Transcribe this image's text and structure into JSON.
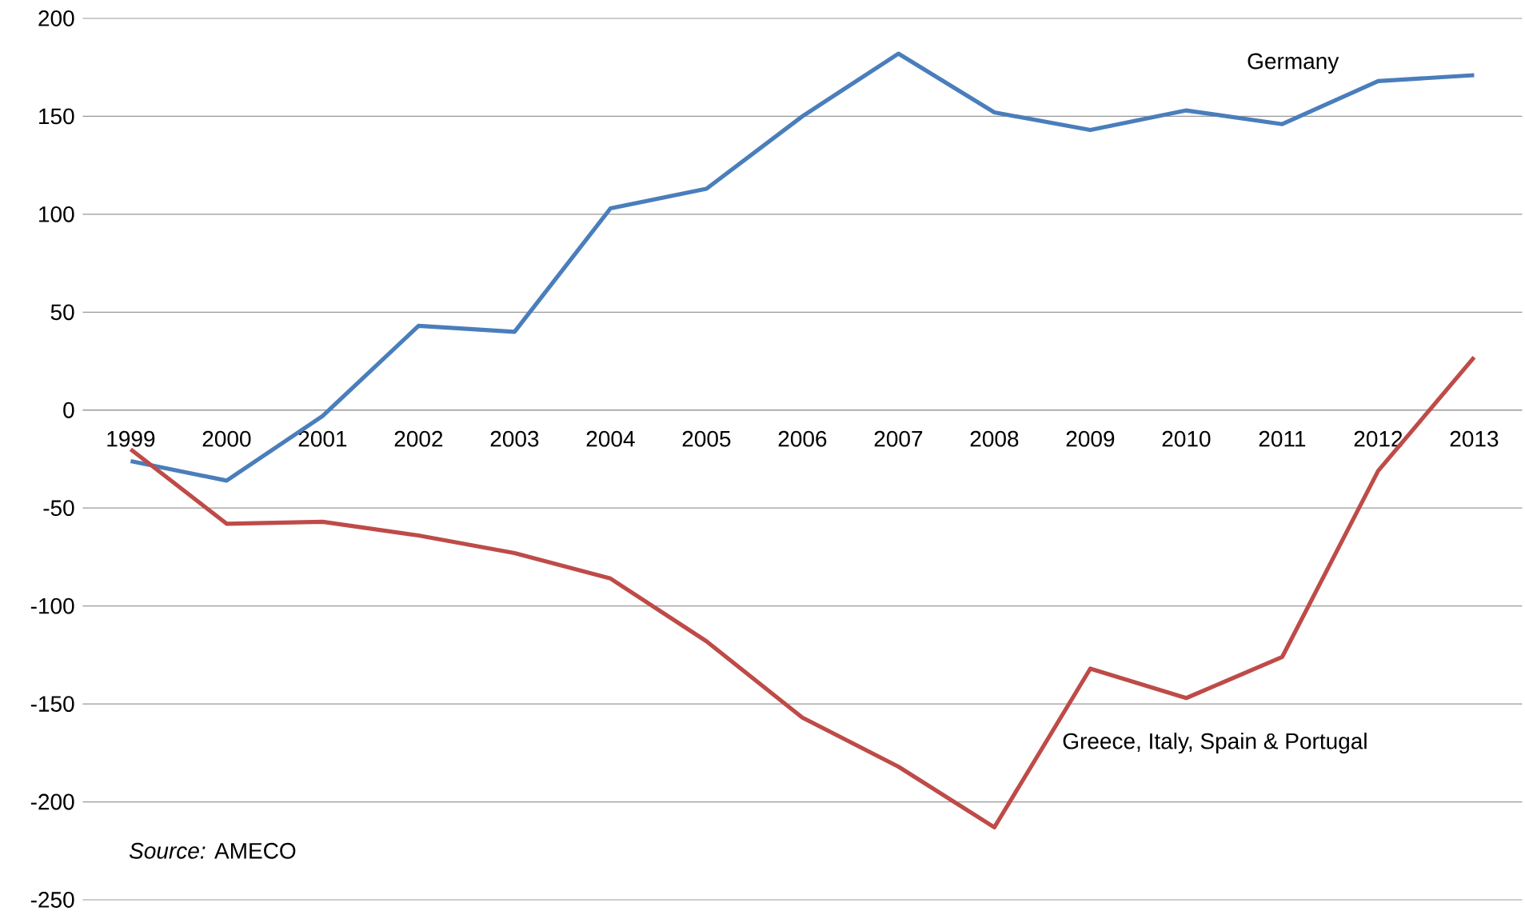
{
  "chart_data": {
    "type": "line",
    "categories": [
      "1999",
      "2000",
      "2001",
      "2002",
      "2003",
      "2004",
      "2005",
      "2006",
      "2007",
      "2008",
      "2009",
      "2010",
      "2011",
      "2012",
      "2013"
    ],
    "series": [
      {
        "name": "Germany",
        "color": "#4a7ebb",
        "values": [
          -26,
          -36,
          -3,
          43,
          40,
          103,
          113,
          150,
          182,
          152,
          143,
          153,
          146,
          168,
          171
        ]
      },
      {
        "name": "Greece, Italy, Spain & Portugal",
        "color": "#be4b48",
        "values": [
          -20,
          -58,
          -57,
          -64,
          -73,
          -86,
          -118,
          -157,
          -182,
          -213,
          -132,
          -147,
          -126,
          -31,
          27
        ]
      }
    ],
    "ylim": [
      -250,
      200
    ],
    "yticks": [
      -250,
      -200,
      -150,
      -100,
      -50,
      0,
      50,
      100,
      150,
      200
    ],
    "grid": "y",
    "marker": "none",
    "line_style": "solid",
    "annotations": [
      "*Source:* AMECO"
    ]
  }
}
